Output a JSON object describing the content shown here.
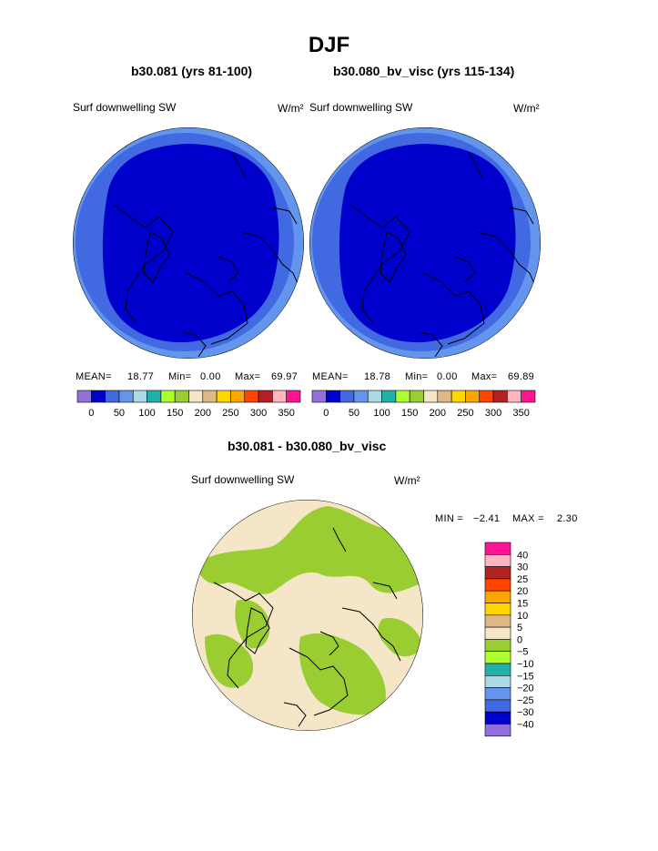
{
  "page": {
    "title": "DJF",
    "diff_title": "b30.081 - b30.080_bv_visc"
  },
  "colors": {
    "ramp": [
      "#9370db",
      "#0000cd",
      "#4169e1",
      "#6495ed",
      "#add8e6",
      "#20b2aa",
      "#adff2f",
      "#9acd32",
      "#f5e6c8",
      "#deb887",
      "#ffd700",
      "#ffa500",
      "#ff4500",
      "#b22222",
      "#ffb6c1",
      "#ff1493"
    ],
    "interior": "#0000cd",
    "ring": "#4169e1",
    "outer": "#6495ed",
    "diff_pos": "#f5e6c8",
    "diff_neg": "#9acd32"
  },
  "chart_data": [
    {
      "type": "heatmap",
      "projection": "north-polar-stereographic",
      "title": "b30.081 (yrs 81-100)",
      "field_label": "Surf downwelling SW",
      "units": "W/m²",
      "stats": {
        "mean": "18.77",
        "min": "0.00",
        "max": "69.97"
      },
      "stats_text": {
        "mean_label": "MEAN=",
        "min_label": "Min=",
        "max_label": "Max="
      },
      "colorbar_ticks": [
        "0",
        "50",
        "100",
        "150",
        "200",
        "250",
        "300",
        "350"
      ],
      "regions": [
        {
          "zone": "central Arctic",
          "value_range": [
            0,
            25
          ]
        },
        {
          "zone": "outer ring",
          "value_range": [
            25,
            50
          ]
        },
        {
          "zone": "edge",
          "value_range": [
            50,
            75
          ]
        }
      ]
    },
    {
      "type": "heatmap",
      "projection": "north-polar-stereographic",
      "title": "b30.080_bv_visc (yrs 115-134)",
      "field_label": "Surf downwelling SW",
      "units": "W/m²",
      "stats": {
        "mean": "18.78",
        "min": "0.00",
        "max": "69.89"
      },
      "stats_text": {
        "mean_label": "MEAN=",
        "min_label": "Min=",
        "max_label": "Max="
      },
      "colorbar_ticks": [
        "0",
        "50",
        "100",
        "150",
        "200",
        "250",
        "300",
        "350"
      ],
      "regions": [
        {
          "zone": "central Arctic",
          "value_range": [
            0,
            25
          ]
        },
        {
          "zone": "outer ring",
          "value_range": [
            25,
            50
          ]
        },
        {
          "zone": "edge",
          "value_range": [
            50,
            75
          ]
        }
      ]
    },
    {
      "type": "heatmap",
      "projection": "north-polar-stereographic",
      "title": "b30.081 - b30.080_bv_visc",
      "field_label": "Surf downwelling SW",
      "units": "W/m²",
      "stats": {
        "min": "−2.41",
        "max": "2.30"
      },
      "stats_text": {
        "min_label": "MIN =",
        "max_label": "MAX ="
      },
      "colorbar_levels": [
        "40",
        "30",
        "25",
        "20",
        "15",
        "10",
        "5",
        "0",
        "−5",
        "−10",
        "−15",
        "−20",
        "−25",
        "−30",
        "−40"
      ],
      "regions": [
        {
          "zone": "mixed",
          "value_range": [
            -5,
            0
          ]
        },
        {
          "zone": "mixed",
          "value_range": [
            0,
            5
          ]
        }
      ]
    }
  ]
}
